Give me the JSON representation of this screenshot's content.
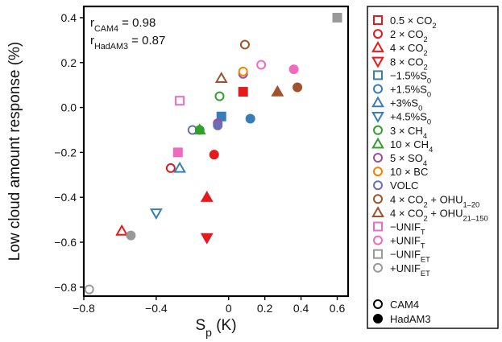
{
  "chart_data": {
    "type": "scatter",
    "xlabel_main": "S",
    "xlabel_sub": "p",
    "xlabel_unit": " (K)",
    "ylabel": "Low cloud amount response (%)",
    "xlim": [
      -0.8,
      0.66
    ],
    "ylim": [
      -0.84,
      0.45
    ],
    "x_ticks": [
      -0.8,
      -0.4,
      0.0,
      0.2,
      0.4,
      0.6
    ],
    "x_tick_labels": [
      "−0.8",
      "−0.4",
      "0",
      "0.2",
      "0.4",
      "0.6"
    ],
    "y_ticks": [
      0.4,
      0.2,
      0.0,
      -0.2,
      -0.4,
      -0.6,
      -0.8
    ],
    "y_tick_labels": [
      "0.4",
      "0.2",
      "0.0",
      "−0.2",
      "−0.4",
      "−0.6",
      "−0.8"
    ],
    "grid": false,
    "legend_position": "right-outside",
    "annotations": [
      {
        "main": "r",
        "sub": "CAM4",
        "rest": " = 0.98"
      },
      {
        "main": "r",
        "sub": "HadAM3",
        "rest": " = 0.87"
      }
    ],
    "model_legend": [
      {
        "label": "CAM4",
        "filled": false
      },
      {
        "label": "HadAM3",
        "filled": true
      }
    ],
    "series": [
      {
        "label": [
          {
            "t": "0.5 × CO"
          },
          {
            "t": "2",
            "sub": true
          }
        ],
        "marker": "square",
        "color": "#e41a1c",
        "points": [
          {
            "x": 0.08,
            "y": 0.07,
            "model": "HadAM3"
          }
        ]
      },
      {
        "label": [
          {
            "t": "2 × CO"
          },
          {
            "t": "2",
            "sub": true
          }
        ],
        "marker": "circle",
        "color": "#e41a1c",
        "points": [
          {
            "x": -0.32,
            "y": -0.27,
            "model": "CAM4"
          },
          {
            "x": -0.08,
            "y": -0.21,
            "model": "HadAM3"
          }
        ]
      },
      {
        "label": [
          {
            "t": "4 × CO"
          },
          {
            "t": "2",
            "sub": true
          }
        ],
        "marker": "triangle-up",
        "color": "#e41a1c",
        "points": [
          {
            "x": -0.59,
            "y": -0.55,
            "model": "CAM4"
          },
          {
            "x": -0.12,
            "y": -0.4,
            "model": "HadAM3"
          }
        ]
      },
      {
        "label": [
          {
            "t": "8 × CO"
          },
          {
            "t": "2",
            "sub": true
          }
        ],
        "marker": "triangle-down",
        "color": "#e41a1c",
        "points": [
          {
            "x": -0.12,
            "y": -0.58,
            "model": "HadAM3"
          }
        ]
      },
      {
        "label": [
          {
            "t": "−1.5%S"
          },
          {
            "t": "0",
            "sub": true
          }
        ],
        "marker": "square",
        "color": "#377eb8",
        "points": [
          {
            "x": -0.04,
            "y": -0.04,
            "model": "HadAM3"
          }
        ]
      },
      {
        "label": [
          {
            "t": "+1.5%S"
          },
          {
            "t": "0",
            "sub": true
          }
        ],
        "marker": "circle",
        "color": "#377eb8",
        "points": [
          {
            "x": 0.12,
            "y": -0.05,
            "model": "HadAM3"
          }
        ]
      },
      {
        "label": [
          {
            "t": "+3%S"
          },
          {
            "t": "0",
            "sub": true
          }
        ],
        "marker": "triangle-up",
        "color": "#377eb8",
        "points": [
          {
            "x": -0.27,
            "y": -0.27,
            "model": "CAM4"
          }
        ]
      },
      {
        "label": [
          {
            "t": "+4.5%S"
          },
          {
            "t": "0",
            "sub": true
          }
        ],
        "marker": "triangle-down",
        "color": "#377eb8",
        "points": [
          {
            "x": -0.4,
            "y": -0.47,
            "model": "CAM4"
          }
        ]
      },
      {
        "label": [
          {
            "t": "3 × CH"
          },
          {
            "t": "4",
            "sub": true
          }
        ],
        "marker": "circle",
        "color": "#33a02c",
        "points": [
          {
            "x": -0.05,
            "y": 0.05,
            "model": "CAM4"
          },
          {
            "x": -0.16,
            "y": -0.1,
            "model": "HadAM3"
          }
        ]
      },
      {
        "label": [
          {
            "t": "10 × CH"
          },
          {
            "t": "4",
            "sub": true
          }
        ],
        "marker": "triangle-up",
        "color": "#33a02c",
        "points": [
          {
            "x": -0.16,
            "y": -0.1,
            "model": "CAM4"
          }
        ]
      },
      {
        "label": [
          {
            "t": "5 × SO"
          },
          {
            "t": "4",
            "sub": true
          }
        ],
        "marker": "circle",
        "color": "#984ea3",
        "points": [
          {
            "x": 0.08,
            "y": 0.15,
            "model": "CAM4"
          },
          {
            "x": -0.06,
            "y": -0.07,
            "model": "HadAM3"
          }
        ]
      },
      {
        "label": [
          {
            "t": "10 × BC"
          }
        ],
        "marker": "circle",
        "color": "#ff7f00",
        "points": [
          {
            "x": 0.08,
            "y": 0.16,
            "model": "CAM4"
          }
        ]
      },
      {
        "label": [
          {
            "t": "VOLC"
          }
        ],
        "marker": "circle",
        "color": "#6a6fb5",
        "points": [
          {
            "x": -0.2,
            "y": -0.1,
            "model": "CAM4"
          },
          {
            "x": -0.06,
            "y": -0.08,
            "model": "HadAM3"
          }
        ]
      },
      {
        "label": [
          {
            "t": "4 × CO"
          },
          {
            "t": "2",
            "sub": true
          },
          {
            "t": " + OHU"
          },
          {
            "t": "1–20",
            "sub": true
          }
        ],
        "marker": "circle",
        "color": "#a0522d",
        "points": [
          {
            "x": 0.09,
            "y": 0.28,
            "model": "CAM4"
          },
          {
            "x": 0.38,
            "y": 0.09,
            "model": "HadAM3"
          }
        ]
      },
      {
        "label": [
          {
            "t": "4 × CO"
          },
          {
            "t": "2",
            "sub": true
          },
          {
            "t": " + OHU"
          },
          {
            "t": "21–150",
            "sub": true
          }
        ],
        "marker": "triangle-up",
        "color": "#a0522d",
        "points": [
          {
            "x": -0.04,
            "y": 0.13,
            "model": "CAM4"
          },
          {
            "x": 0.27,
            "y": 0.07,
            "model": "HadAM3"
          }
        ]
      },
      {
        "label": [
          {
            "t": "−UNIF"
          },
          {
            "t": "T",
            "sub": true
          }
        ],
        "marker": "square",
        "color": "#f06bc0",
        "points": [
          {
            "x": -0.27,
            "y": 0.03,
            "model": "CAM4"
          },
          {
            "x": -0.28,
            "y": -0.2,
            "model": "HadAM3"
          }
        ]
      },
      {
        "label": [
          {
            "t": "+UNIF"
          },
          {
            "t": "T",
            "sub": true
          }
        ],
        "marker": "circle",
        "color": "#f06bc0",
        "points": [
          {
            "x": 0.18,
            "y": 0.19,
            "model": "CAM4"
          },
          {
            "x": 0.36,
            "y": 0.17,
            "model": "HadAM3"
          }
        ]
      },
      {
        "label": [
          {
            "t": "−UNIF"
          },
          {
            "t": "ET",
            "sub": true
          }
        ],
        "marker": "square",
        "color": "#999999",
        "points": [
          {
            "x": 0.6,
            "y": 0.4,
            "model": "HadAM3"
          }
        ]
      },
      {
        "label": [
          {
            "t": "+UNIF"
          },
          {
            "t": "ET",
            "sub": true
          }
        ],
        "marker": "circle",
        "color": "#999999",
        "points": [
          {
            "x": -0.77,
            "y": -0.81,
            "model": "CAM4"
          },
          {
            "x": -0.54,
            "y": -0.57,
            "model": "HadAM3"
          }
        ]
      }
    ]
  }
}
